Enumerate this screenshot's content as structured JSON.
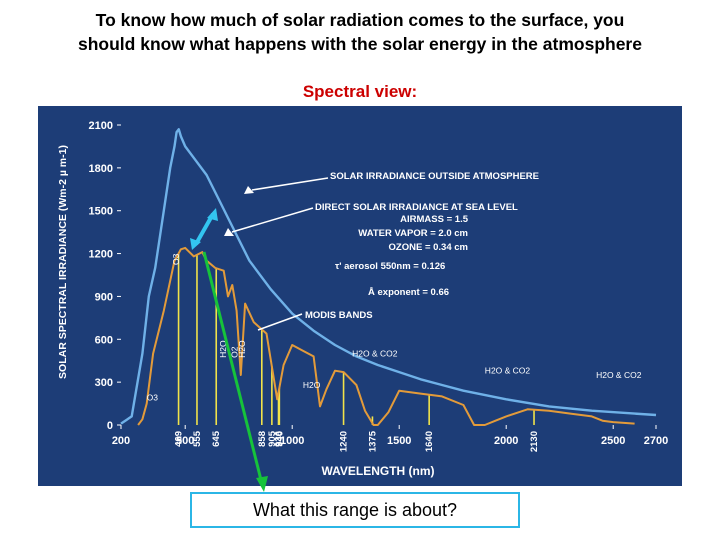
{
  "slide": {
    "title_line1": "To know how much of solar radiation comes to the surface, you",
    "title_line2": "should know what happens with the solar energy in the atmosphere",
    "section_label": "Spectral view:",
    "question": "What this range is about?"
  },
  "colors": {
    "panel_bg": "#1d3d77",
    "outside_curve": "#6fb1e8",
    "sea_level_curve": "#e39b3a",
    "modis_bands": "#f1e34a",
    "arrow_green": "#16c33a",
    "arrow_cyan": "#33c5f0",
    "axis_text": "#ffffff"
  },
  "chart_data": {
    "type": "line",
    "xlabel": "WAVELENGTH (nm)",
    "ylabel": "SOLAR SPECTRAL IRRADIANCE (Wm-2 µ m-1)",
    "xlim": [
      200,
      2700
    ],
    "ylim": [
      0,
      2100
    ],
    "x_ticks": [
      "200",
      "500",
      "1000",
      "1500",
      "2000",
      "2500",
      "2700"
    ],
    "y_ticks": [
      "0",
      "300",
      "600",
      "900",
      "1200",
      "1500",
      "1800",
      "2100"
    ],
    "series": [
      {
        "name": "SOLAR IRRADIANCE OUTSIDE ATMOSPHERE",
        "x": [
          200,
          250,
          300,
          330,
          360,
          400,
          430,
          450,
          460,
          470,
          480,
          500,
          550,
          600,
          650,
          700,
          800,
          900,
          1000,
          1100,
          1200,
          1300,
          1400,
          1500,
          1600,
          1700,
          1800,
          2000,
          2200,
          2400,
          2600,
          2700
        ],
        "values": [
          10,
          60,
          500,
          900,
          1100,
          1500,
          1800,
          1950,
          2050,
          2070,
          2020,
          1950,
          1850,
          1750,
          1600,
          1450,
          1150,
          950,
          780,
          660,
          560,
          480,
          420,
          370,
          320,
          280,
          240,
          180,
          130,
          100,
          80,
          70
        ]
      },
      {
        "name": "DIRECT SOLAR IRRADIANCE AT SEA LEVEL",
        "x": [
          280,
          300,
          320,
          350,
          400,
          450,
          480,
          500,
          540,
          580,
          600,
          640,
          680,
          700,
          720,
          740,
          760,
          780,
          820,
          880,
          930,
          960,
          1000,
          1050,
          1100,
          1130,
          1160,
          1200,
          1240,
          1300,
          1340,
          1380,
          1400,
          1450,
          1500,
          1600,
          1700,
          1800,
          1850,
          1900,
          1950,
          2000,
          2100,
          2200,
          2300,
          2400,
          2450,
          2500,
          2550,
          2600
        ],
        "values": [
          0,
          40,
          150,
          500,
          800,
          1150,
          1230,
          1240,
          1180,
          1210,
          1150,
          1100,
          1080,
          900,
          980,
          800,
          350,
          850,
          720,
          640,
          180,
          420,
          560,
          520,
          480,
          130,
          250,
          380,
          370,
          280,
          100,
          0,
          0,
          90,
          240,
          220,
          200,
          140,
          0,
          0,
          30,
          60,
          110,
          100,
          80,
          60,
          30,
          20,
          15,
          10
        ]
      }
    ],
    "annotations": [
      "SOLAR IRRADIANCE OUTSIDE ATMOSPHERE",
      "DIRECT SOLAR IRRADIANCE AT SEA LEVEL",
      "AIRMASS = 1.5",
      "WATER VAPOR = 2.0 cm",
      "OZONE = 0.34 cm",
      "τ' aerosol 550nm = 0.126",
      "Å exponent = 0.66",
      "MODIS BANDS",
      "O3",
      "H2O",
      "H2O & CO2"
    ],
    "modis_bands": {
      "label": "MODIS BANDS",
      "centers": [
        469,
        555,
        645,
        858,
        905,
        936,
        940,
        1240,
        1375,
        1640,
        2130
      ],
      "labels": [
        "469",
        "555",
        "645",
        "858",
        "905",
        "936",
        "940",
        "1240",
        "1375",
        "1640",
        "2130"
      ]
    },
    "absorption_labels": [
      {
        "text": "O3",
        "x": 470,
        "y": 1120,
        "rotate": -90
      },
      {
        "text": "O3",
        "x": 320,
        "y": 170,
        "rotate": 0
      },
      {
        "text": "H2O",
        "x": 690,
        "y": 470,
        "rotate": -90
      },
      {
        "text": "O2",
        "x": 745,
        "y": 470,
        "rotate": -90
      },
      {
        "text": "H2O",
        "x": 780,
        "y": 470,
        "rotate": -90
      },
      {
        "text": "H2O",
        "x": 1050,
        "y": 260,
        "rotate": 0
      },
      {
        "text": "H2O & CO2",
        "x": 1280,
        "y": 480,
        "rotate": 0
      },
      {
        "text": "H2O & CO2",
        "x": 1900,
        "y": 360,
        "rotate": 0
      },
      {
        "text": "H2O & CO2",
        "x": 2420,
        "y": 330,
        "rotate": 0
      }
    ]
  }
}
